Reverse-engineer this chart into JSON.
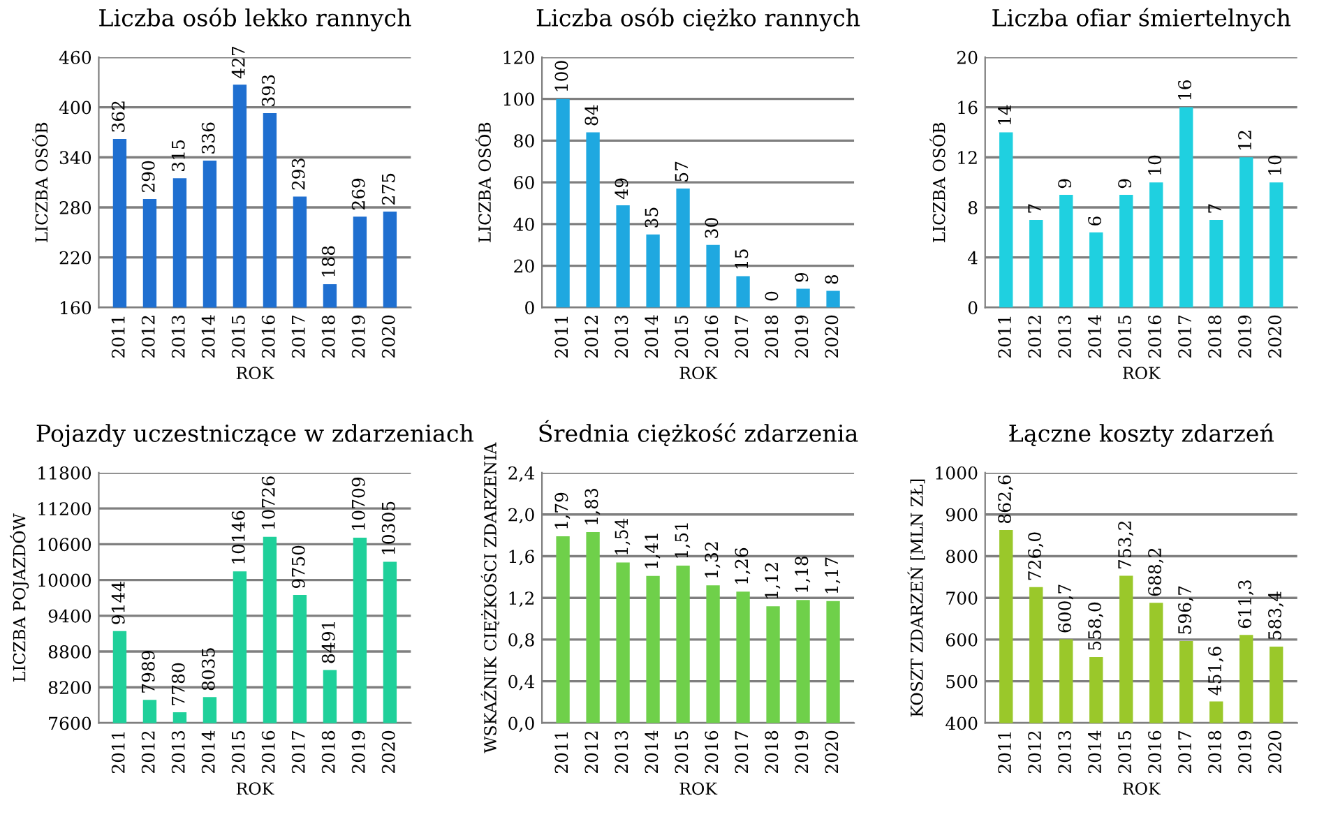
{
  "chart_data": [
    {
      "type": "bar",
      "title": "Liczba osób lekko rannych",
      "xlabel": "ROK",
      "ylabel": "LICZBA OSÓB",
      "categories": [
        "2011",
        "2012",
        "2013",
        "2014",
        "2015",
        "2016",
        "2017",
        "2018",
        "2019",
        "2020"
      ],
      "values": [
        362,
        290,
        315,
        336,
        427,
        393,
        293,
        188,
        269,
        275
      ],
      "color": "#1f6fd0",
      "ylim": [
        160,
        460
      ],
      "yticks": [
        160,
        220,
        280,
        340,
        400,
        460
      ],
      "grid": "y",
      "data_labels": true
    },
    {
      "type": "bar",
      "title": "Liczba osób ciężko rannych",
      "xlabel": "ROK",
      "ylabel": "LICZBA OSÓB",
      "categories": [
        "2011",
        "2012",
        "2013",
        "2014",
        "2015",
        "2016",
        "2017",
        "2018",
        "2019",
        "2020"
      ],
      "values": [
        100,
        84,
        49,
        35,
        57,
        30,
        15,
        0,
        9,
        8
      ],
      "color": "#1fa8e0",
      "ylim": [
        0,
        120
      ],
      "yticks": [
        0,
        20,
        40,
        60,
        80,
        100,
        120
      ],
      "grid": "y",
      "data_labels": true
    },
    {
      "type": "bar",
      "title": "Liczba ofiar śmiertelnych",
      "xlabel": "ROK",
      "ylabel": "LICZBA OSÓB",
      "categories": [
        "2011",
        "2012",
        "2013",
        "2014",
        "2015",
        "2016",
        "2017",
        "2018",
        "2019",
        "2020"
      ],
      "values": [
        14,
        7,
        9,
        6,
        9,
        10,
        16,
        7,
        12,
        10
      ],
      "color": "#1fd0e0",
      "ylim": [
        0,
        20
      ],
      "yticks": [
        0,
        4,
        8,
        12,
        16,
        20
      ],
      "grid": "y",
      "data_labels": true
    },
    {
      "type": "bar",
      "title": "Pojazdy uczestniczące w zdarzeniach",
      "xlabel": "ROK",
      "ylabel": "LICZBA POJAZDÓW",
      "categories": [
        "2011",
        "2012",
        "2013",
        "2014",
        "2015",
        "2016",
        "2017",
        "2018",
        "2019",
        "2020"
      ],
      "values": [
        9144,
        7989,
        7780,
        8035,
        10146,
        10726,
        9750,
        8491,
        10709,
        10305
      ],
      "color": "#1fd09a",
      "ylim": [
        7600,
        11800
      ],
      "yticks": [
        7600,
        8200,
        8800,
        9400,
        10000,
        10600,
        11200,
        11800
      ],
      "grid": "y",
      "data_labels": true
    },
    {
      "type": "bar",
      "title": "Średnia ciężkość zdarzenia",
      "xlabel": "ROK",
      "ylabel": "WSKAŹNIK CIĘŻKOŚCI ZDARZENIA",
      "categories": [
        "2011",
        "2012",
        "2013",
        "2014",
        "2015",
        "2016",
        "2017",
        "2018",
        "2019",
        "2020"
      ],
      "values": [
        1.79,
        1.83,
        1.54,
        1.41,
        1.51,
        1.32,
        1.26,
        1.12,
        1.18,
        1.17
      ],
      "value_labels": [
        "1,79",
        "1,83",
        "1,54",
        "1,41",
        "1,51",
        "1,32",
        "1,26",
        "1,12",
        "1,18",
        "1,17"
      ],
      "color": "#6fd04a",
      "ylim": [
        0,
        2.4
      ],
      "yticks": [
        {
          "value": 0,
          "label": "0,0"
        },
        {
          "value": 0.4,
          "label": "0,4"
        },
        {
          "value": 0.8,
          "label": "0,8"
        },
        {
          "value": 1.2,
          "label": "1,2"
        },
        {
          "value": 1.6,
          "label": "1,6"
        },
        {
          "value": 2.0,
          "label": "2,0"
        },
        {
          "value": 2.4,
          "label": "2,4"
        }
      ],
      "grid": "y"
    },
    {
      "type": "bar",
      "title": "Łączne koszty zdarzeń",
      "xlabel": "ROK",
      "ylabel": "KOSZT ZDARZEŃ [MLN ZŁ]",
      "categories": [
        "2011",
        "2012",
        "2013",
        "2014",
        "2015",
        "2016",
        "2017",
        "2018",
        "2019",
        "2020"
      ],
      "values": [
        862.6,
        726.0,
        600.7,
        558.0,
        753.2,
        688.2,
        596.7,
        451.6,
        611.3,
        583.4
      ],
      "value_labels": [
        "862,6",
        "726,0",
        "600,7",
        "558,0",
        "753,2",
        "688,2",
        "596,7",
        "451,6",
        "611,3",
        "583,4"
      ],
      "color": "#9ac82a",
      "ylim": [
        400,
        1000
      ],
      "yticks": [
        400,
        500,
        600,
        700,
        800,
        900,
        1000
      ],
      "grid": "y"
    }
  ]
}
